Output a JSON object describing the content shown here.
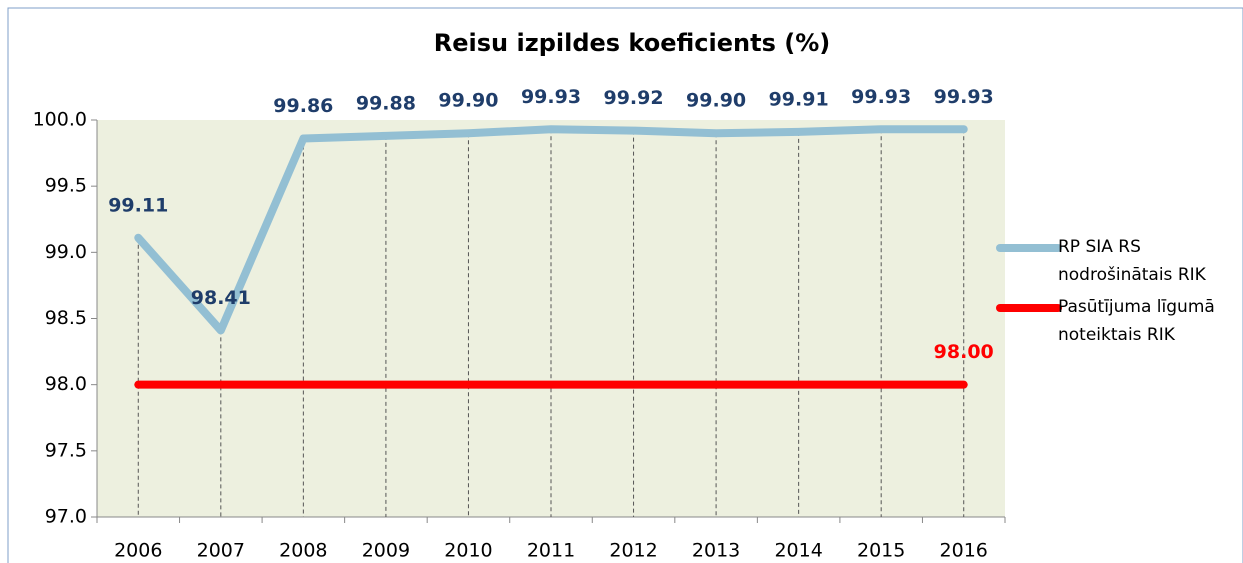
{
  "chart_data": {
    "type": "line",
    "title": "Reisu izpildes koeficients (%)",
    "categories": [
      "2006",
      "2007",
      "2008",
      "2009",
      "2010",
      "2011",
      "2012",
      "2013",
      "2014",
      "2015",
      "2016"
    ],
    "series": [
      {
        "name": "RP SIA RS nodrošinātais RIK",
        "color": "#93bfd3",
        "values": [
          99.11,
          98.41,
          99.86,
          99.88,
          99.9,
          99.93,
          99.92,
          99.9,
          99.91,
          99.93,
          99.93
        ],
        "value_labels": [
          "99.11",
          "98.41",
          "99.86",
          "99.88",
          "99.90",
          "99.93",
          "99.92",
          "99.90",
          "99.91",
          "99.93",
          "99.93"
        ],
        "label_color": "#1f3d6a"
      },
      {
        "name": "Pasūtījuma līgumā noteiktais RIK",
        "color": "#ff0000",
        "values": [
          98,
          98,
          98,
          98,
          98,
          98,
          98,
          98,
          98,
          98,
          98
        ],
        "value_labels": [
          null,
          null,
          null,
          null,
          null,
          null,
          null,
          null,
          null,
          null,
          "98.00"
        ],
        "label_color": "#ff0000"
      }
    ],
    "ylim": [
      97,
      100
    ],
    "yticks": [
      {
        "value": 97,
        "label": "97.0"
      },
      97.5,
      {
        "value": 98,
        "label": "98.0"
      },
      98.5,
      {
        "value": 99,
        "label": "99.0"
      },
      99.5,
      {
        "value": 100,
        "label": "100.0"
      }
    ],
    "legend": "right",
    "plot_background": "#edf0df"
  }
}
